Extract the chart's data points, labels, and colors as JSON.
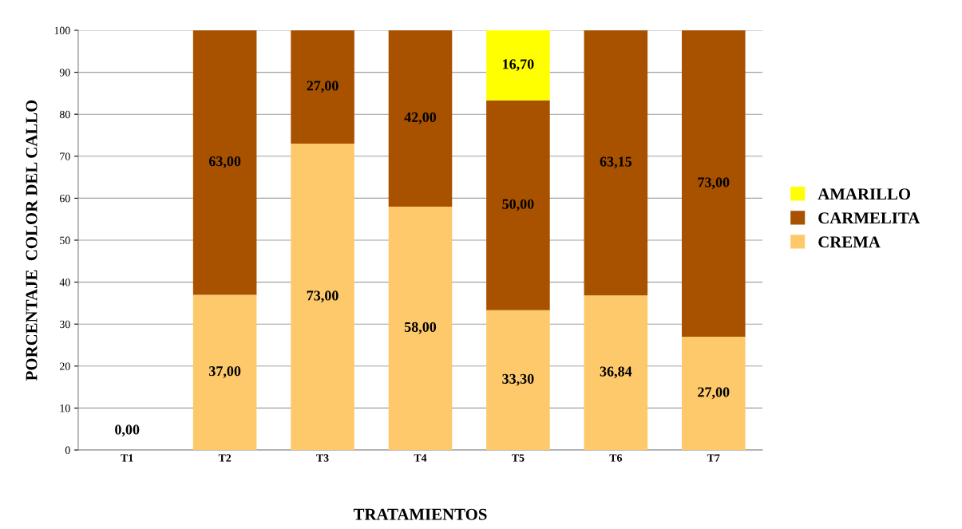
{
  "chart_data": {
    "type": "bar",
    "stacked": true,
    "xlabel": "TRATAMIENTOS",
    "ylabel": "PORCENTAJE  COLOR DEL CALLO",
    "categories": [
      "T1",
      "T2",
      "T3",
      "T4",
      "T5",
      "T6",
      "T7"
    ],
    "series": [
      {
        "name": "CREMA",
        "color": "#fdc96a",
        "values": [
          0,
          37,
          73,
          58,
          33.3,
          36.84,
          27
        ],
        "value_labels": [
          "0,00",
          "37,00",
          "73,00",
          "58,00",
          "33,30",
          "36,84",
          "27,00"
        ]
      },
      {
        "name": "CARMELITA",
        "color": "#a85200",
        "values": [
          null,
          63,
          27,
          42,
          50,
          63.15,
          73
        ],
        "value_labels": [
          null,
          "63,00",
          "27,00",
          "42,00",
          "50,00",
          "63,15",
          "73,00"
        ]
      },
      {
        "name": "AMARILLO",
        "color": "#ffff00",
        "values": [
          null,
          null,
          null,
          null,
          16.7,
          null,
          null
        ],
        "value_labels": [
          null,
          null,
          null,
          null,
          "16,70",
          null,
          null
        ]
      }
    ],
    "ylim": [
      0,
      100
    ],
    "yticks": [
      0,
      10,
      20,
      30,
      40,
      50,
      60,
      70,
      80,
      90,
      100
    ],
    "grid": "y",
    "legend": "right"
  }
}
